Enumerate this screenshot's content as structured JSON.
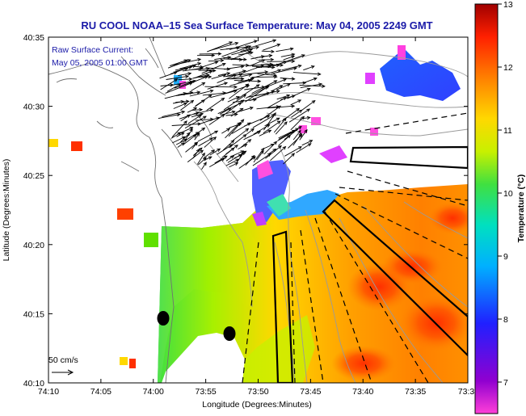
{
  "title": "RU COOL  NOAA–15  Sea Surface Temperature:  May 04, 2005 2249 GMT",
  "current_label_line1": "Raw Surface Current:",
  "current_label_line2": "May 05, 2005 01:00 GMT",
  "scale_label": "50 cm/s",
  "x_axis_label": "Longitude (Degrees:Minutes)",
  "y_axis_label": "Latitude (Degrees:Minutes)",
  "x_ticks": [
    "74:10",
    "74:05",
    "74:00",
    "73:55",
    "73:50",
    "73:45",
    "73:40",
    "73:35",
    "73:3"
  ],
  "y_ticks": [
    "40:35",
    "40:30",
    "40:25",
    "40:20",
    "40:15",
    "40:10"
  ],
  "colorbar": {
    "label": "Temperature (°C)",
    "ticks": [
      "13",
      "12",
      "11",
      "10",
      "9",
      "8",
      "7"
    ],
    "min": 6.5,
    "max": 13,
    "stops": [
      "#ff3fd8",
      "#9000d0",
      "#2020ff",
      "#00b0ff",
      "#00e0c0",
      "#40e040",
      "#c8f000",
      "#ffd800",
      "#ff8000",
      "#ff2000",
      "#a00000"
    ]
  },
  "colors": {
    "title": "#1a1aa8",
    "land_contour": "#9a9a9a",
    "coast": "#707070"
  }
}
